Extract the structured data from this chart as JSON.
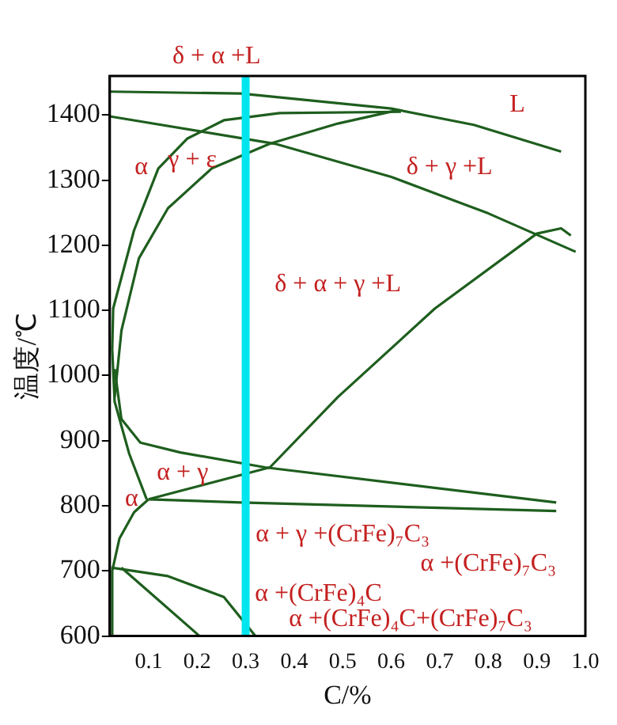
{
  "chart_data": {
    "type": "line",
    "xlabel": "C/%",
    "ylabel": "温度/℃",
    "xlim": [
      0.02,
      1.0
    ],
    "ylim": [
      600,
      1460
    ],
    "xticks": [
      0.1,
      0.2,
      0.3,
      0.4,
      0.5,
      0.6,
      0.7,
      0.8,
      0.9,
      {
        "value": 1,
        "label": "1.0"
      }
    ],
    "yticks": [
      600,
      700,
      800,
      900,
      1000,
      1100,
      1200,
      1300,
      1400
    ],
    "grid": false,
    "legend": false,
    "marker": "none",
    "line_style": "solid",
    "series": [
      {
        "color": "#1e5e1e",
        "x": [
          0.02,
          0.29,
          0.6,
          0.77,
          0.95
        ],
        "values": [
          1436,
          1433,
          1410,
          1385,
          1344
        ]
      },
      {
        "color": "#1e5e1e",
        "x": [
          0.02,
          0.36,
          0.6,
          0.8,
          0.98
        ],
        "values": [
          1398,
          1356,
          1305,
          1249,
          1190
        ]
      },
      {
        "color": "#1e5e1e",
        "x": [
          0.096,
          0.06,
          0.03,
          0.025,
          0.027,
          0.07,
          0.12,
          0.18,
          0.255,
          0.37,
          0.62
        ],
        "values": [
          810,
          880,
          960,
          1040,
          1103,
          1223,
          1318,
          1364,
          1392,
          1403,
          1405
        ]
      },
      {
        "color": "#1e5e1e",
        "x": [
          0.03,
          0.044,
          0.08,
          0.14,
          0.23,
          0.35,
          0.49,
          0.61
        ],
        "values": [
          967,
          1069,
          1180,
          1257,
          1318,
          1356,
          1387,
          1407
        ]
      },
      {
        "color": "#1e5e1e",
        "x": [
          0.03,
          0.044,
          0.083,
          0.165,
          0.34,
          0.94
        ],
        "values": [
          1010,
          933,
          897,
          882,
          859,
          805
        ]
      },
      {
        "color": "#1e5e1e",
        "x": [
          0.1,
          0.29,
          0.94
        ],
        "values": [
          810,
          805,
          792
        ]
      },
      {
        "color": "#1e5e1e",
        "x": [
          0.1,
          0.35,
          0.49,
          0.69,
          0.9,
          0.95,
          0.97
        ],
        "values": [
          810,
          859,
          967,
          1103,
          1218,
          1226,
          1215
        ]
      },
      {
        "color": "#1e5e1e",
        "x": [
          0.023,
          0.025,
          0.04,
          0.07,
          0.1
        ],
        "values": [
          600,
          700,
          750,
          790,
          810
        ]
      },
      {
        "color": "#1e5e1e",
        "x": [
          0.023,
          0.14,
          0.255,
          0.32
        ],
        "values": [
          705,
          692,
          660,
          600
        ]
      },
      {
        "color": "#1e5e1e",
        "x": [
          0.044,
          0.205
        ],
        "values": [
          705,
          600
        ]
      }
    ],
    "ref_lines": [
      {
        "axis": "x",
        "value": 0.3,
        "color": "#00e5ee"
      }
    ],
    "annotations": [
      "δ + α +L",
      "L",
      "α",
      "γ + ε",
      "δ + γ +L",
      "δ + α + γ +L",
      "α + γ",
      "α",
      "α + γ +(CrFe)₇C₃",
      "α +(CrFe)₇C₃",
      "α +(CrFe)₄C",
      "α +(CrFe)₄C+(CrFe)₇C₃"
    ]
  }
}
